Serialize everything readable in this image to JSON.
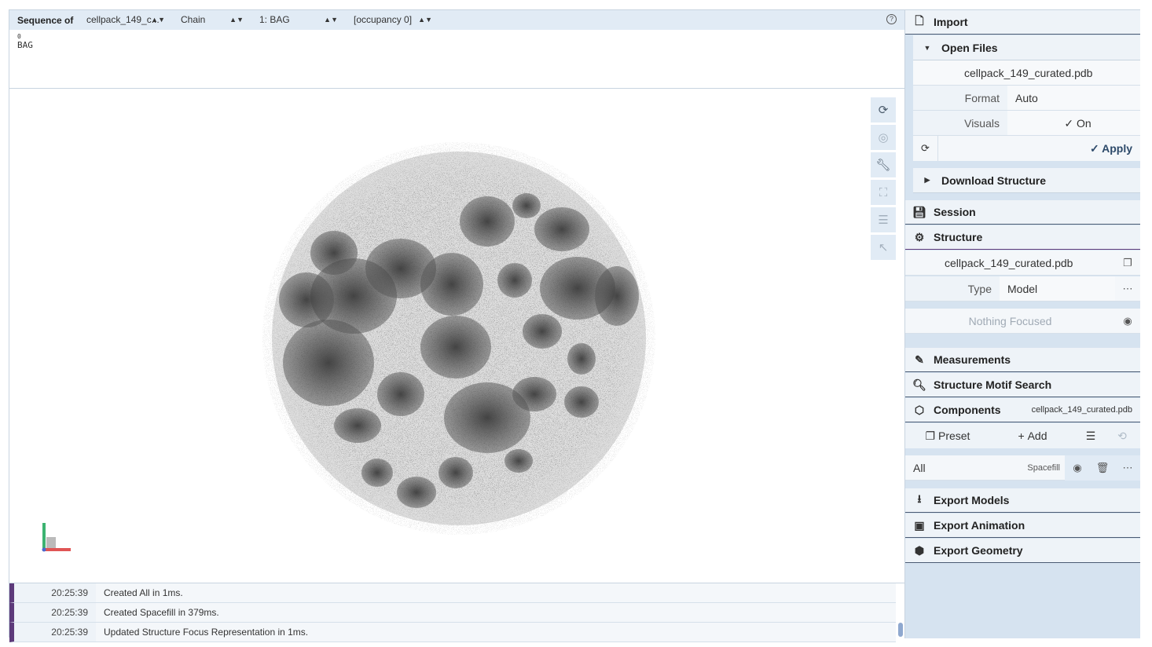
{
  "sequence": {
    "label": "Sequence of",
    "selects": [
      {
        "value": "cellpack_149_c..."
      },
      {
        "value": "Chain"
      },
      {
        "value": "1: BAG"
      },
      {
        "value": "[occupancy 0]"
      }
    ],
    "residue_index": "0",
    "residue": "BAG"
  },
  "viewport": {
    "controls": [
      "reset-camera-icon",
      "screenshot-icon",
      "wrench-icon",
      "fullscreen-icon",
      "settings-sliders-icon",
      "pointer-icon"
    ]
  },
  "log": [
    {
      "time": "20:25:39",
      "message": "Created All in 1ms."
    },
    {
      "time": "20:25:39",
      "message": "Created Spacefill in 379ms."
    },
    {
      "time": "20:25:39",
      "message": "Updated Structure Focus Representation in 1ms."
    }
  ],
  "right_panel": {
    "import": {
      "title": "Import",
      "open_files": {
        "title": "Open Files",
        "file": "cellpack_149_curated.pdb",
        "format_label": "Format",
        "format_value": "Auto",
        "visuals_label": "Visuals",
        "visuals_value": "On",
        "apply_label": "Apply"
      },
      "download_structure": "Download Structure"
    },
    "session": "Session",
    "structure": {
      "title": "Structure",
      "file": "cellpack_149_curated.pdb",
      "type_label": "Type",
      "type_value": "Model",
      "focus": "Nothing Focused"
    },
    "measurements": "Measurements",
    "motif_search": "Structure Motif Search",
    "components": {
      "title": "Components",
      "file": "cellpack_149_curated.pdb",
      "preset": "Preset",
      "add": "Add",
      "item_label": "All",
      "item_repr": "Spacefill"
    },
    "export_models": "Export Models",
    "export_animation": "Export Animation",
    "export_geometry": "Export Geometry"
  }
}
